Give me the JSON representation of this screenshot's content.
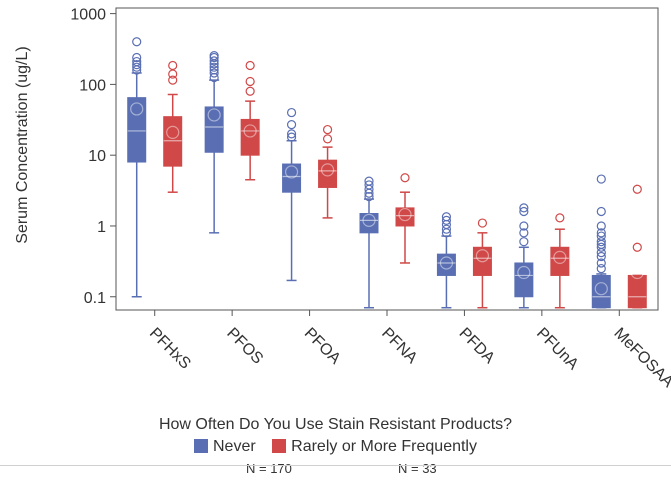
{
  "chart_data": {
    "type": "boxplot",
    "ylabel": "Serum Concentration (ug/L)",
    "yscale": "log",
    "ylim": [
      0.065,
      1200
    ],
    "yticks": [
      0.1,
      1,
      10,
      100,
      1000
    ],
    "ytick_labels": [
      "0.1",
      "1",
      "10",
      "100",
      "1000"
    ],
    "categories": [
      "PFHxS",
      "PFOS",
      "PFOA",
      "PFNA",
      "PFDA",
      "PFUnA",
      "MeFOSAA"
    ],
    "legend_title": "How Often Do You Use Stain Resistant Products?",
    "series": [
      {
        "name": "Never",
        "n_label": "N = 170",
        "color": "#5a6fb3",
        "boxes": [
          {
            "min": 0.1,
            "q1": 8,
            "median": 22,
            "q3": 65,
            "max": 145,
            "mean": 45,
            "outliers": [
              160,
              175,
              190,
              210,
              240,
              400
            ]
          },
          {
            "min": 0.8,
            "q1": 11,
            "median": 25,
            "q3": 48,
            "max": 115,
            "mean": 37,
            "outliers": [
              125,
              145,
              160,
              175,
              195,
              215,
              240,
              255
            ]
          },
          {
            "min": 0.17,
            "q1": 3,
            "median": 5,
            "q3": 7.5,
            "max": 16,
            "mean": 5.8,
            "outliers": [
              18,
              20,
              27,
              40
            ]
          },
          {
            "min": 0.07,
            "q1": 0.8,
            "median": 1.2,
            "q3": 1.5,
            "max": 2.4,
            "mean": 1.2,
            "outliers": [
              2.6,
              2.9,
              3.3,
              3.8,
              4.3
            ]
          },
          {
            "min": 0.07,
            "q1": 0.2,
            "median": 0.3,
            "q3": 0.4,
            "max": 0.72,
            "mean": 0.3,
            "outliers": [
              0.8,
              0.9,
              1.05,
              1.2,
              1.35
            ]
          },
          {
            "min": 0.07,
            "q1": 0.1,
            "median": 0.2,
            "q3": 0.3,
            "max": 0.5,
            "mean": 0.22,
            "outliers": [
              0.6,
              0.8,
              1.0,
              1.6,
              1.8
            ]
          },
          {
            "min": 0.07,
            "q1": 0.07,
            "median": 0.1,
            "q3": 0.2,
            "max": 0.21,
            "mean": 0.13,
            "outliers": [
              0.25,
              0.3,
              0.37,
              0.42,
              0.5,
              0.55,
              0.6,
              0.72,
              0.8,
              1.0,
              1.6,
              4.6
            ]
          }
        ]
      },
      {
        "name": "Rarely or More Frequently",
        "n_label": "N = 33",
        "color": "#d04848",
        "boxes": [
          {
            "min": 3,
            "q1": 7,
            "median": 16,
            "q3": 35,
            "max": 72,
            "mean": 21,
            "outliers": [
              115,
              140,
              185
            ]
          },
          {
            "min": 4.5,
            "q1": 10,
            "median": 22,
            "q3": 32,
            "max": 58,
            "mean": 22,
            "outliers": [
              80,
              110,
              185
            ]
          },
          {
            "min": 1.3,
            "q1": 3.5,
            "median": 6,
            "q3": 8.5,
            "max": 13,
            "mean": 6.2,
            "outliers": [
              17,
              23
            ]
          },
          {
            "min": 0.3,
            "q1": 1,
            "median": 1.4,
            "q3": 1.8,
            "max": 3,
            "mean": 1.45,
            "outliers": [
              4.8
            ]
          },
          {
            "min": 0.07,
            "q1": 0.2,
            "median": 0.35,
            "q3": 0.5,
            "max": 0.8,
            "mean": 0.38,
            "outliers": [
              1.1
            ]
          },
          {
            "min": 0.07,
            "q1": 0.2,
            "median": 0.35,
            "q3": 0.5,
            "max": 0.9,
            "mean": 0.36,
            "outliers": [
              1.3
            ]
          },
          {
            "min": 0.07,
            "q1": 0.07,
            "median": 0.1,
            "q3": 0.2,
            "max": 0.2,
            "mean": 0.22,
            "outliers": [
              0.5,
              3.3
            ]
          }
        ]
      }
    ],
    "grid": false,
    "legend_position": "bottom"
  }
}
